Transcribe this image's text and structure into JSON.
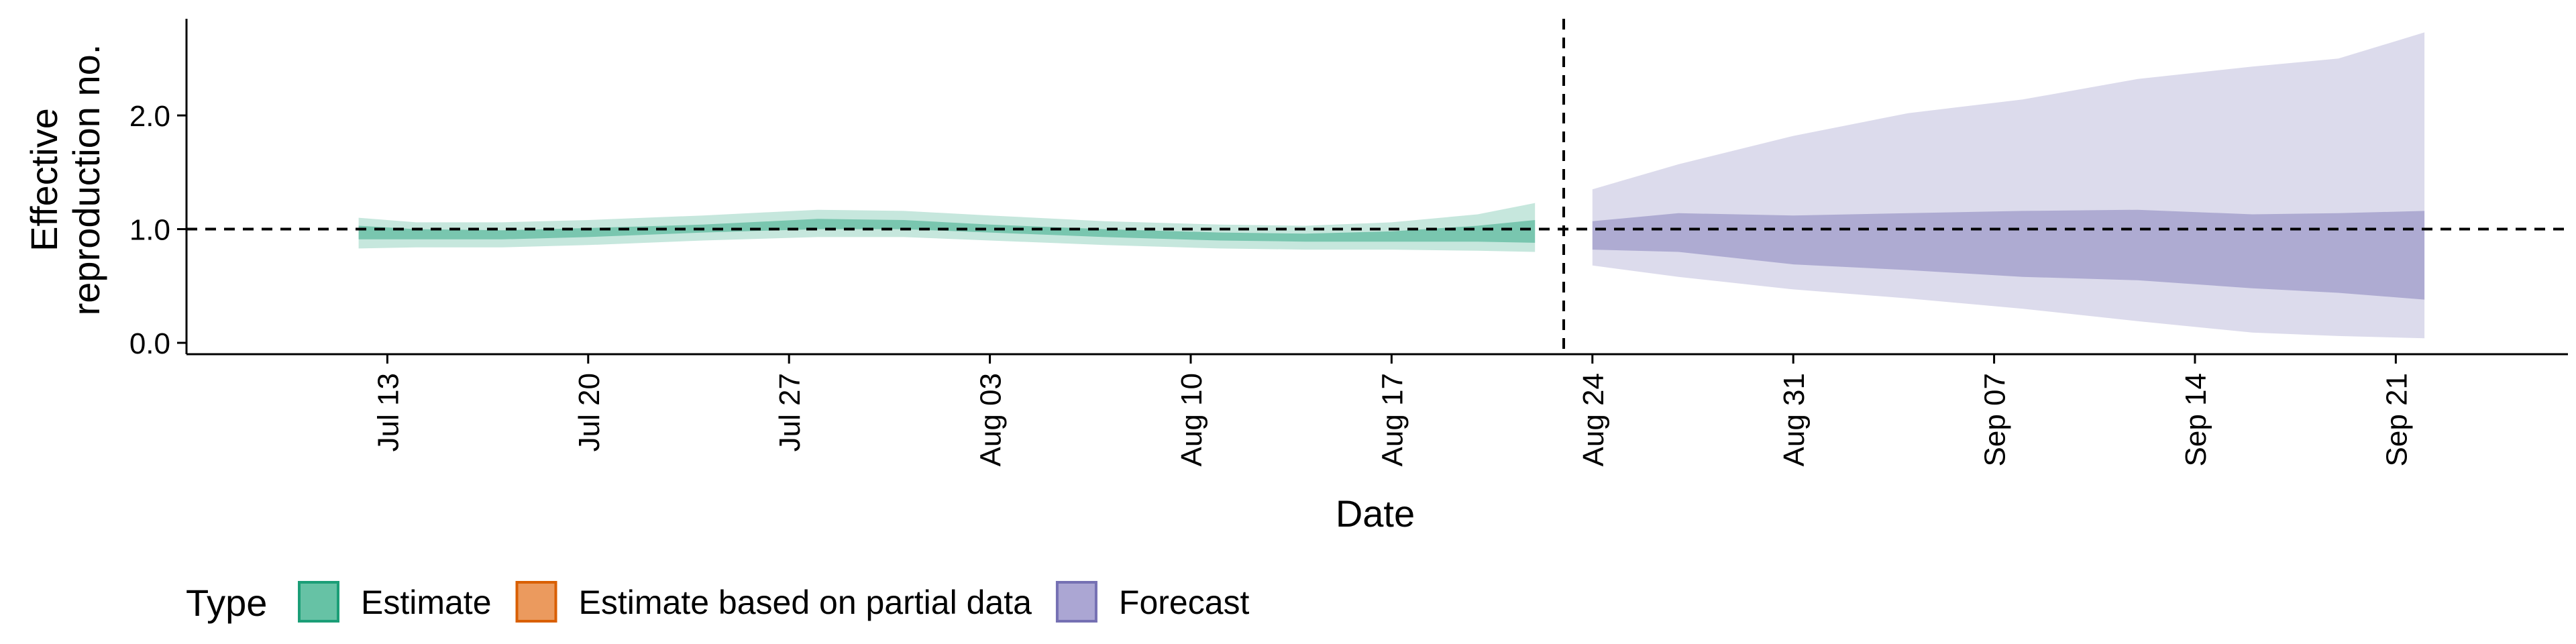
{
  "chart_data": {
    "type": "area",
    "xlabel": "Date",
    "ylabel_lines": [
      "Effective",
      "reproduction no."
    ],
    "ylim": [
      -0.1,
      2.85
    ],
    "xlim": [
      "2020-07-06",
      "2020-09-27"
    ],
    "y_ticks": [
      {
        "value": 0.0,
        "label": "0.0"
      },
      {
        "value": 1.0,
        "label": "1.0"
      },
      {
        "value": 2.0,
        "label": "2.0"
      }
    ],
    "x_ticks": [
      {
        "date": "2020-07-13",
        "label": "Jul 13"
      },
      {
        "date": "2020-07-20",
        "label": "Jul 20"
      },
      {
        "date": "2020-07-27",
        "label": "Jul 27"
      },
      {
        "date": "2020-08-03",
        "label": "Aug 03"
      },
      {
        "date": "2020-08-10",
        "label": "Aug 10"
      },
      {
        "date": "2020-08-17",
        "label": "Aug 17"
      },
      {
        "date": "2020-08-24",
        "label": "Aug 24"
      },
      {
        "date": "2020-08-31",
        "label": "Aug 31"
      },
      {
        "date": "2020-09-07",
        "label": "Sep 07"
      },
      {
        "date": "2020-09-14",
        "label": "Sep 14"
      },
      {
        "date": "2020-09-21",
        "label": "Sep 21"
      }
    ],
    "reference_lines": {
      "horizontal_y": 1.0,
      "vertical_date": "2020-08-23"
    },
    "grid": false,
    "legend": {
      "title": "Type",
      "position": "bottom-left",
      "items": [
        {
          "label": "Estimate",
          "fill": "#66c2a5",
          "stroke": "#1b9e77"
        },
        {
          "label": "Estimate based on partial data",
          "fill": "#eb9a5e",
          "stroke": "#d95f02"
        },
        {
          "label": "Forecast",
          "fill": "#aba6d3",
          "stroke": "#7570b3"
        }
      ]
    },
    "series": [
      {
        "name": "Estimate",
        "outer_color": "#1b9e77",
        "inner_color": "#1b9e77",
        "points": [
          {
            "date": "2020-07-12",
            "outer": [
              0.83,
              1.1
            ],
            "inner": [
              0.91,
              1.03
            ]
          },
          {
            "date": "2020-07-14",
            "outer": [
              0.84,
              1.06
            ],
            "inner": [
              0.91,
              1.0
            ]
          },
          {
            "date": "2020-07-17",
            "outer": [
              0.84,
              1.06
            ],
            "inner": [
              0.91,
              0.99
            ]
          },
          {
            "date": "2020-07-20",
            "outer": [
              0.86,
              1.08
            ],
            "inner": [
              0.93,
              1.01
            ]
          },
          {
            "date": "2020-07-24",
            "outer": [
              0.9,
              1.12
            ],
            "inner": [
              0.97,
              1.04
            ]
          },
          {
            "date": "2020-07-28",
            "outer": [
              0.93,
              1.17
            ],
            "inner": [
              1.0,
              1.09
            ]
          },
          {
            "date": "2020-07-31",
            "outer": [
              0.93,
              1.16
            ],
            "inner": [
              1.0,
              1.08
            ]
          },
          {
            "date": "2020-08-03",
            "outer": [
              0.9,
              1.12
            ],
            "inner": [
              0.97,
              1.04
            ]
          },
          {
            "date": "2020-08-07",
            "outer": [
              0.86,
              1.07
            ],
            "inner": [
              0.93,
              1.0
            ]
          },
          {
            "date": "2020-08-11",
            "outer": [
              0.83,
              1.04
            ],
            "inner": [
              0.9,
              0.97
            ]
          },
          {
            "date": "2020-08-14",
            "outer": [
              0.82,
              1.03
            ],
            "inner": [
              0.89,
              0.96
            ]
          },
          {
            "date": "2020-08-17",
            "outer": [
              0.82,
              1.06
            ],
            "inner": [
              0.89,
              0.98
            ]
          },
          {
            "date": "2020-08-20",
            "outer": [
              0.81,
              1.13
            ],
            "inner": [
              0.89,
              1.03
            ]
          },
          {
            "date": "2020-08-22",
            "outer": [
              0.8,
              1.23
            ],
            "inner": [
              0.88,
              1.08
            ]
          }
        ]
      },
      {
        "name": "Forecast",
        "outer_color": "#7570b3",
        "inner_color": "#7570b3",
        "points": [
          {
            "date": "2020-08-24",
            "outer": [
              0.68,
              1.35
            ],
            "inner": [
              0.82,
              1.07
            ]
          },
          {
            "date": "2020-08-27",
            "outer": [
              0.58,
              1.57
            ],
            "inner": [
              0.8,
              1.14
            ]
          },
          {
            "date": "2020-08-31",
            "outer": [
              0.47,
              1.82
            ],
            "inner": [
              0.69,
              1.12
            ]
          },
          {
            "date": "2020-09-04",
            "outer": [
              0.39,
              2.02
            ],
            "inner": [
              0.64,
              1.14
            ]
          },
          {
            "date": "2020-09-08",
            "outer": [
              0.3,
              2.14
            ],
            "inner": [
              0.58,
              1.16
            ]
          },
          {
            "date": "2020-09-12",
            "outer": [
              0.19,
              2.32
            ],
            "inner": [
              0.55,
              1.17
            ]
          },
          {
            "date": "2020-09-16",
            "outer": [
              0.09,
              2.43
            ],
            "inner": [
              0.48,
              1.13
            ]
          },
          {
            "date": "2020-09-19",
            "outer": [
              0.06,
              2.5
            ],
            "inner": [
              0.44,
              1.14
            ]
          },
          {
            "date": "2020-09-22",
            "outer": [
              0.04,
              2.73
            ],
            "inner": [
              0.38,
              1.16
            ]
          }
        ]
      }
    ]
  }
}
